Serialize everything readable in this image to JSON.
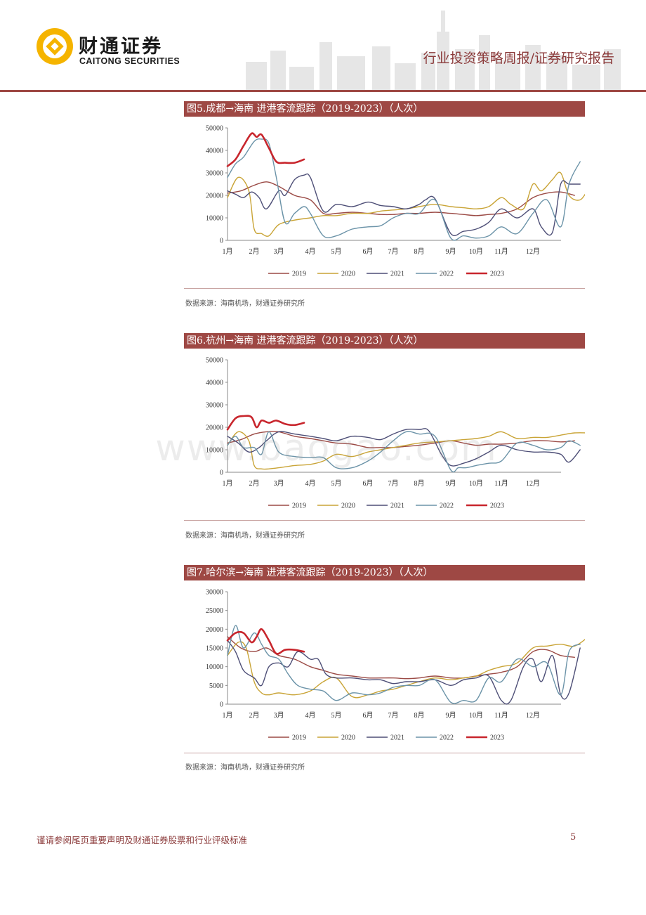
{
  "header": {
    "company_cn": "财通证券",
    "company_en": "CAITONG SECURITIES",
    "report_type": "行业投资策略周报/证券研究报告"
  },
  "watermark": "www.baogao.com",
  "colors": {
    "accent": "#9e4844",
    "s2019": "#9b4a45",
    "s2020": "#c9a436",
    "s2021": "#4e4f77",
    "s2022": "#6b93a8",
    "s2023": "#c8262d"
  },
  "footer": {
    "disclaimer": "谨请参阅尾页重要声明及财通证券股票和行业评级标准",
    "page_number": "5"
  },
  "figures": [
    {
      "title": "图5.成都→海南 进港客流跟踪（2019-2023）（人次）",
      "source": "数据来源：海南机场，财通证券研究所"
    },
    {
      "title": "图6.杭州→海南 进港客流跟踪（2019-2023）（人次）",
      "source": "数据来源：海南机场，财通证券研究所"
    },
    {
      "title": "图7.哈尔滨→海南 进港客流跟踪（2019-2023）（人次）",
      "source": "数据来源：海南机场，财通证券研究所"
    }
  ],
  "chart_data": [
    {
      "type": "line",
      "title": "成都→海南 进港客流跟踪（2019-2023）（人次）",
      "ylim": [
        0,
        50000
      ],
      "yticks": [
        "50000",
        "40000",
        "30000",
        "20000",
        "10000",
        "0"
      ],
      "month_labels": [
        "1月",
        "2月",
        "3月",
        "4月",
        "5月",
        "6月",
        "7月",
        "8月",
        "9月",
        "10月",
        "11月",
        "12月"
      ],
      "legend": [
        "2019",
        "2020",
        "2021",
        "2022",
        "2023"
      ],
      "series": [
        {
          "name": "2019",
          "x": [
            0,
            0.5,
            1,
            1.5,
            2,
            2.5,
            3,
            3.5,
            4,
            4.5,
            5,
            5.5,
            6,
            6.5,
            7,
            7.5,
            8,
            8.5,
            9,
            9.5,
            10,
            10.5,
            11,
            11.5,
            12,
            12.5
          ],
          "values": [
            21000,
            22000,
            24500,
            26000,
            24000,
            20000,
            18000,
            12000,
            12000,
            12500,
            12000,
            11500,
            11500,
            12000,
            12000,
            12500,
            12000,
            11500,
            11000,
            11500,
            12000,
            14000,
            19000,
            21000,
            21500,
            20000
          ]
        },
        {
          "name": "2020",
          "x": [
            0,
            0.4,
            0.8,
            1,
            1.3,
            1.6,
            2,
            2.5,
            3,
            3.5,
            4,
            4.5,
            5,
            5.5,
            6,
            6.5,
            7,
            7.5,
            8,
            8.5,
            9,
            9.5,
            10,
            10.3,
            10.7,
            11,
            11.3,
            11.7,
            12,
            12.3,
            12.7,
            13
          ],
          "values": [
            19000,
            28000,
            22000,
            5000,
            3000,
            2000,
            7000,
            9000,
            10000,
            11000,
            11000,
            12000,
            12000,
            13000,
            13500,
            14000,
            15000,
            16000,
            15000,
            14500,
            14000,
            15000,
            19000,
            16000,
            14000,
            25000,
            22000,
            27000,
            30000,
            20000,
            18000,
            23000
          ]
        },
        {
          "name": "2021",
          "x": [
            0,
            0.3,
            0.6,
            0.9,
            1.2,
            1.5,
            2,
            2.2,
            2.5,
            2.8,
            3,
            3.5,
            4,
            4.5,
            5,
            5.5,
            6,
            6.5,
            7,
            7.2,
            7.5,
            8,
            8.5,
            9,
            9.5,
            10,
            10.5,
            11,
            11.3,
            11.7,
            12,
            12.3,
            12.7
          ],
          "values": [
            22000,
            20500,
            19000,
            21500,
            19000,
            14000,
            22000,
            20000,
            27000,
            29000,
            28000,
            13000,
            16000,
            15000,
            17000,
            15500,
            15000,
            14000,
            16000,
            18000,
            18500,
            3000,
            4000,
            5000,
            8000,
            14000,
            10000,
            14000,
            6000,
            3500,
            25000,
            25000,
            25000
          ]
        },
        {
          "name": "2022",
          "x": [
            0,
            0.3,
            0.6,
            1,
            1.3,
            1.6,
            1.9,
            2.2,
            2.5,
            2.8,
            3,
            3.5,
            4,
            4.5,
            5,
            5.5,
            6,
            6.5,
            7,
            7.5,
            8,
            8.5,
            9,
            9.5,
            10,
            10.5,
            11,
            11.5,
            12,
            12.3,
            12.7
          ],
          "values": [
            28000,
            34000,
            37000,
            44000,
            45000,
            43000,
            28000,
            8000,
            12000,
            15000,
            12000,
            2000,
            2000,
            5000,
            6000,
            6500,
            10000,
            12000,
            12000,
            18000,
            1000,
            2000,
            1000,
            2000,
            6000,
            3000,
            12000,
            18000,
            6000,
            25000,
            35000
          ]
        },
        {
          "name": "2023",
          "x": [
            0,
            0.3,
            0.6,
            0.9,
            1.1,
            1.3,
            1.6,
            1.9,
            2.2,
            2.5,
            2.8
          ],
          "values": [
            33000,
            36000,
            42000,
            47500,
            46000,
            47000,
            41000,
            35000,
            34500,
            34500,
            36000
          ]
        }
      ]
    },
    {
      "type": "line",
      "title": "杭州→海南 进港客流跟踪（2019-2023）（人次）",
      "ylim": [
        0,
        50000
      ],
      "yticks": [
        "50000",
        "40000",
        "30000",
        "20000",
        "10000",
        "0"
      ],
      "month_labels": [
        "1月",
        "2月",
        "3月",
        "4月",
        "5月",
        "6月",
        "7月",
        "8月",
        "9月",
        "10月",
        "11月",
        "12月"
      ],
      "legend": [
        "2019",
        "2020",
        "2021",
        "2022",
        "2023"
      ],
      "series": [
        {
          "name": "2019",
          "x": [
            0,
            0.5,
            1,
            1.5,
            2,
            2.5,
            3,
            3.5,
            4,
            4.5,
            5,
            5.5,
            6,
            6.5,
            7,
            7.5,
            8,
            8.5,
            9,
            9.5,
            10,
            10.5,
            11,
            11.5,
            12,
            12.5
          ],
          "values": [
            13000,
            14500,
            17000,
            18000,
            18000,
            16000,
            15000,
            14000,
            13000,
            12500,
            11000,
            11000,
            11000,
            11500,
            12000,
            13000,
            14000,
            13000,
            12000,
            12500,
            12500,
            13000,
            14000,
            14000,
            13500,
            14000
          ]
        },
        {
          "name": "2020",
          "x": [
            0,
            0.4,
            0.8,
            1,
            1.3,
            1.6,
            2,
            2.5,
            3,
            3.5,
            4,
            4.5,
            5,
            5.5,
            6,
            6.5,
            7,
            7.5,
            8,
            8.5,
            9,
            9.5,
            10,
            10.5,
            11,
            11.5,
            12,
            12.5,
            13
          ],
          "values": [
            12000,
            18000,
            14000,
            3000,
            1500,
            1500,
            2000,
            3000,
            3500,
            5000,
            8000,
            7000,
            9000,
            10000,
            11000,
            12000,
            13000,
            13500,
            14000,
            14500,
            15000,
            16000,
            18000,
            15000,
            15500,
            15500,
            16500,
            17500,
            17500
          ]
        },
        {
          "name": "2021",
          "x": [
            0,
            0.4,
            0.8,
            1.2,
            1.5,
            2,
            2.5,
            3,
            3.5,
            4,
            4.5,
            5,
            5.5,
            6,
            6.5,
            7,
            7.3,
            7.7,
            8,
            8.5,
            9,
            9.5,
            10,
            10.5,
            11,
            11.5,
            12,
            12.3,
            12.7
          ],
          "values": [
            16000,
            13000,
            9000,
            11000,
            14000,
            18000,
            17000,
            16000,
            15000,
            14000,
            16000,
            15500,
            14500,
            17000,
            19000,
            19000,
            18500,
            8000,
            3000,
            4000,
            6000,
            9000,
            12000,
            10000,
            9000,
            9000,
            8000,
            4500,
            10000
          ]
        },
        {
          "name": "2022",
          "x": [
            0,
            0.3,
            0.6,
            1,
            1.3,
            1.6,
            2,
            2.5,
            3,
            3.5,
            4,
            4.5,
            5,
            5.5,
            6,
            6.5,
            7,
            7.5,
            8,
            8.3,
            8.6,
            9,
            9.5,
            10,
            10.5,
            11,
            11.5,
            12,
            12.3,
            12.7
          ],
          "values": [
            12000,
            16000,
            11000,
            11000,
            8000,
            18000,
            9000,
            7000,
            6500,
            6500,
            2000,
            2000,
            5000,
            9000,
            14000,
            18000,
            17000,
            16000,
            1000,
            2000,
            2000,
            3000,
            4000,
            5000,
            13000,
            12000,
            10000,
            11000,
            14000,
            12000
          ]
        },
        {
          "name": "2023",
          "x": [
            0,
            0.3,
            0.6,
            0.9,
            1.1,
            1.3,
            1.6,
            1.9,
            2.2,
            2.5,
            2.8
          ],
          "values": [
            19000,
            24000,
            25000,
            24500,
            20000,
            23000,
            22000,
            23000,
            21500,
            21000,
            22000
          ]
        }
      ]
    },
    {
      "type": "line",
      "title": "哈尔滨→海南 进港客流跟踪（2019-2023）（人次）",
      "ylim": [
        0,
        30000
      ],
      "yticks": [
        "30000",
        "25000",
        "20000",
        "15000",
        "10000",
        "5000",
        "0"
      ],
      "month_labels": [
        "1月",
        "2月",
        "3月",
        "4月",
        "5月",
        "6月",
        "7月",
        "8月",
        "9月",
        "10月",
        "11月",
        "12月"
      ],
      "legend": [
        "2019",
        "2020",
        "2021",
        "2022",
        "2023"
      ],
      "series": [
        {
          "name": "2019",
          "x": [
            0,
            0.5,
            1,
            1.5,
            2,
            2.5,
            3,
            3.5,
            4,
            4.5,
            5,
            5.5,
            6,
            6.5,
            7,
            7.5,
            8,
            8.5,
            9,
            9.5,
            10,
            10.5,
            11,
            11.5,
            12,
            12.5
          ],
          "values": [
            18000,
            15000,
            14000,
            15000,
            13000,
            12000,
            10000,
            9000,
            8000,
            7500,
            7000,
            7000,
            7000,
            6800,
            7000,
            7500,
            7000,
            7000,
            7500,
            8000,
            8500,
            10000,
            14000,
            14500,
            13000,
            12500
          ]
        },
        {
          "name": "2020",
          "x": [
            0,
            0.4,
            0.7,
            1,
            1.3,
            1.6,
            2,
            2.5,
            3,
            3.5,
            4,
            4.5,
            5,
            5.5,
            6,
            6.5,
            7,
            7.5,
            8,
            8.5,
            9,
            9.5,
            10,
            10.5,
            11,
            11.5,
            12,
            12.5,
            13
          ],
          "values": [
            13000,
            16500,
            15000,
            6000,
            3000,
            2500,
            3000,
            2500,
            3500,
            6000,
            7000,
            2000,
            2500,
            3500,
            4000,
            5000,
            6000,
            7000,
            6500,
            7000,
            7500,
            9000,
            10000,
            11000,
            15000,
            15500,
            16000,
            15500,
            18000
          ]
        },
        {
          "name": "2021",
          "x": [
            0,
            0.3,
            0.6,
            1,
            1.3,
            1.6,
            2,
            2.3,
            2.6,
            3,
            3.3,
            3.6,
            4,
            4.5,
            5,
            5.5,
            6,
            6.5,
            7,
            7.5,
            8,
            8.5,
            9,
            9.5,
            10,
            10.3,
            10.7,
            11,
            11.3,
            11.7,
            12,
            12.3,
            12.7
          ],
          "values": [
            17000,
            14000,
            9000,
            7000,
            5000,
            10000,
            11000,
            10000,
            14000,
            12000,
            12000,
            8000,
            7000,
            7000,
            6500,
            6500,
            5500,
            6000,
            6000,
            6500,
            5000,
            6500,
            7000,
            7500,
            1000,
            1000,
            10000,
            12000,
            6000,
            13000,
            2500,
            3000,
            15000
          ]
        },
        {
          "name": "2022",
          "x": [
            0,
            0.3,
            0.6,
            1,
            1.3,
            1.6,
            2,
            2.3,
            2.6,
            3,
            3.5,
            4,
            4.5,
            5,
            5.5,
            6,
            6.5,
            7,
            7.5,
            8,
            8.5,
            9,
            9.5,
            10,
            10.5,
            11,
            11.5,
            12,
            12.3,
            12.7
          ],
          "values": [
            13000,
            21000,
            15000,
            19000,
            16000,
            13000,
            12000,
            8000,
            5000,
            4000,
            3500,
            1000,
            3000,
            2500,
            3000,
            4500,
            5000,
            5000,
            6500,
            500,
            1000,
            1000,
            7000,
            6000,
            12000,
            10000,
            11000,
            2500,
            14000,
            16000
          ]
        },
        {
          "name": "2023",
          "x": [
            0,
            0.3,
            0.6,
            0.9,
            1.1,
            1.3,
            1.6,
            1.9,
            2.2,
            2.5,
            2.8
          ],
          "values": [
            17000,
            19000,
            19000,
            16500,
            18000,
            20000,
            17000,
            13500,
            14500,
            14500,
            14000
          ]
        }
      ]
    }
  ]
}
